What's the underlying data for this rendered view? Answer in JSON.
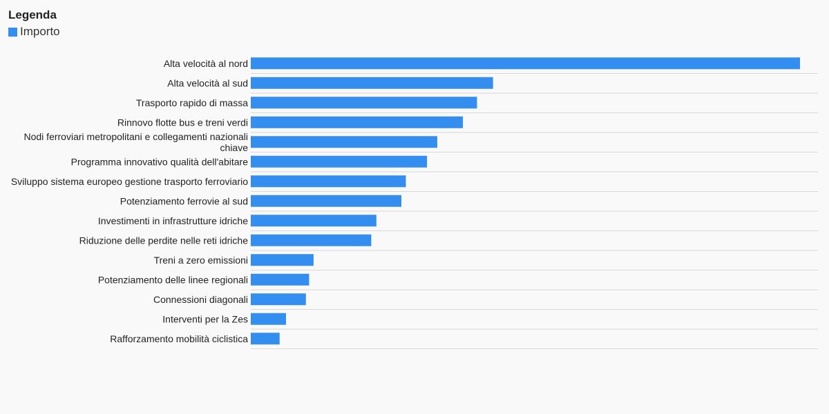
{
  "legend": {
    "title": "Legenda",
    "item_label": "Importo"
  },
  "colors": {
    "bar": "#348ef0",
    "grid": "#d8d8d8",
    "background": "#f9f9f9"
  },
  "chart_data": {
    "type": "bar",
    "orientation": "horizontal",
    "categories": [
      "Alta velocità al nord",
      "Alta velocità al sud",
      "Trasporto rapido di massa",
      "Rinnovo flotte bus e treni verdi",
      "Nodi ferroviari metropolitani e collegamenti nazionali chiave",
      "Programma innovativo qualità dell'abitare",
      "Sviluppo sistema europeo gestione trasporto ferroviario",
      "Potenziamento ferrovie al sud",
      "Investimenti in infrastrutture idriche",
      "Riduzione delle perdite nelle reti idriche",
      "Treni a zero emissioni",
      "Potenziamento delle linee regionali",
      "Connessioni diagonali",
      "Interventi per la Zes",
      "Rafforzamento mobilità ciclistica"
    ],
    "series": [
      {
        "name": "Importo",
        "values": [
          8.57,
          3.78,
          3.53,
          3.31,
          2.91,
          2.75,
          2.42,
          2.35,
          1.96,
          1.88,
          0.98,
          0.91,
          0.86,
          0.55,
          0.45
        ]
      }
    ],
    "xlim": [
      0,
      8.85
    ],
    "grid": true,
    "legend_position": "top-left"
  }
}
